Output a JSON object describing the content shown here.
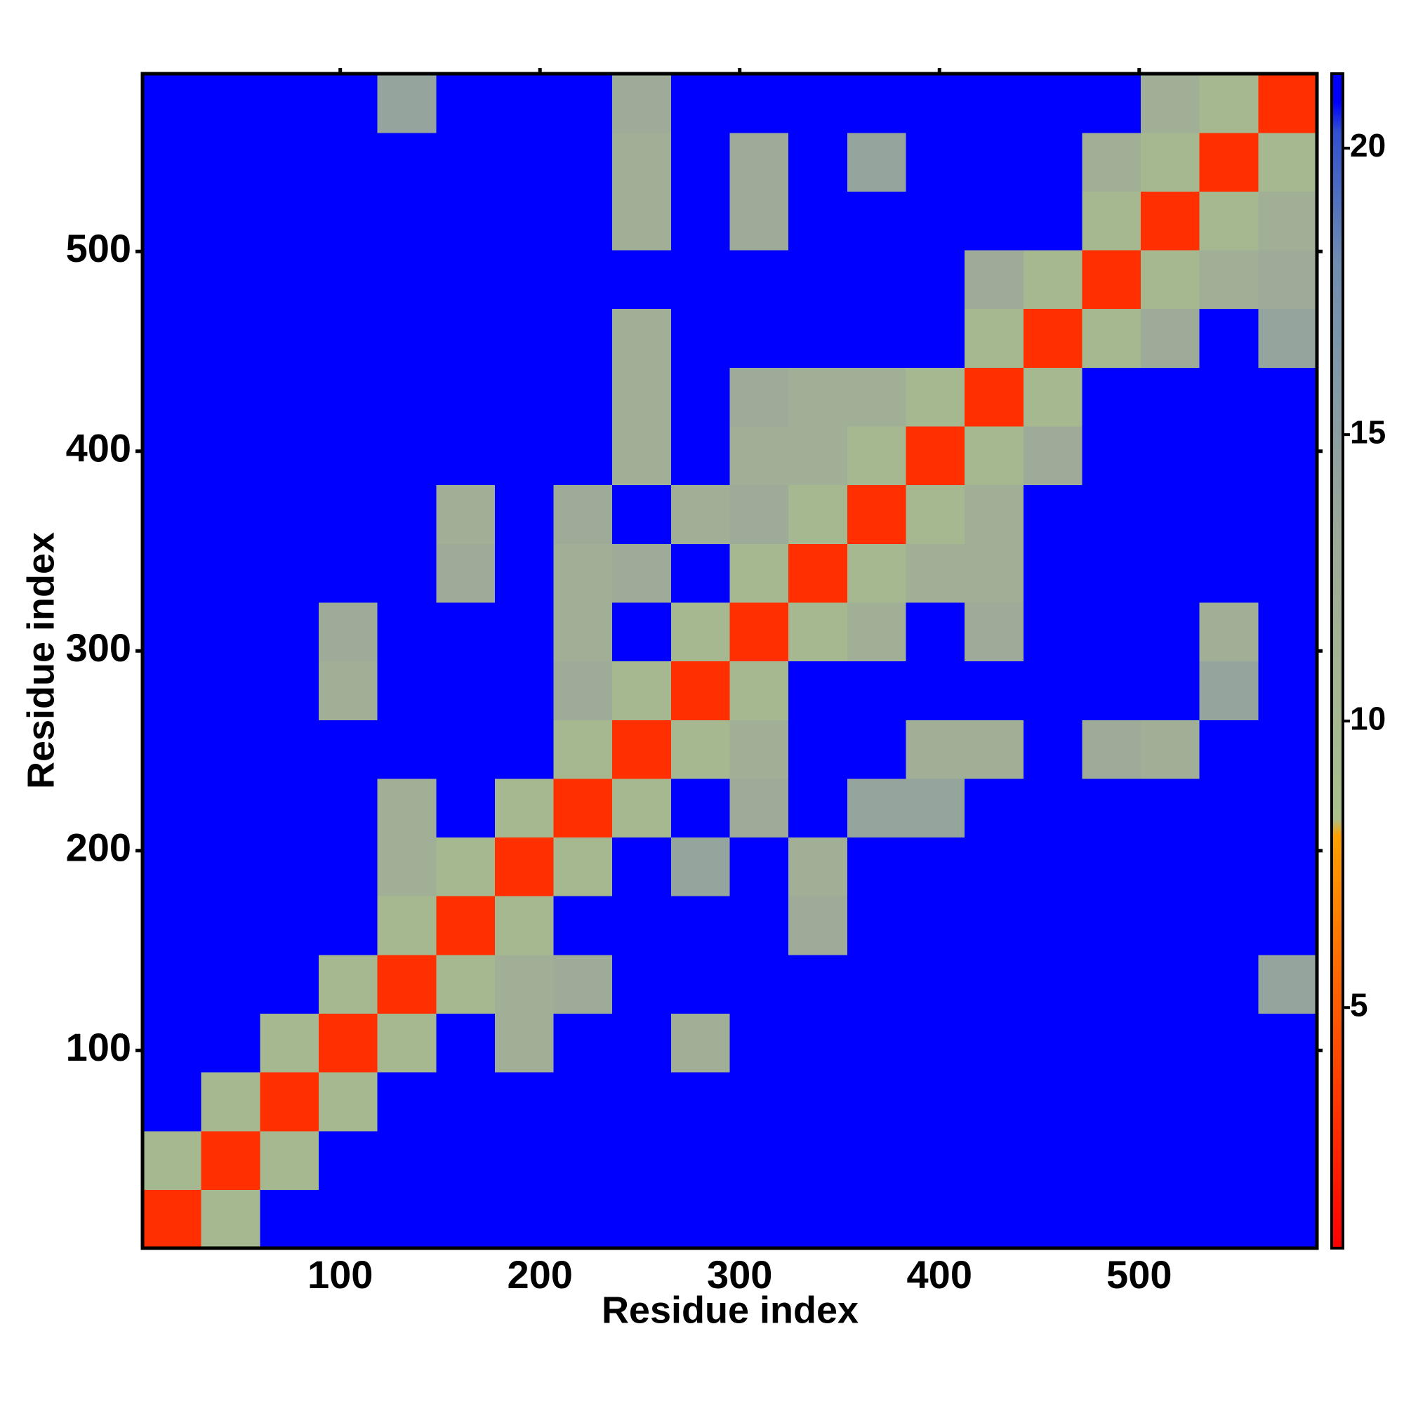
{
  "chart_data": {
    "type": "heatmap",
    "x_label": "Residue index",
    "y_label": "Residue index",
    "xlim": [
      1,
      589
    ],
    "ylim": [
      1,
      589
    ],
    "xticks": [
      100,
      200,
      300,
      400,
      500
    ],
    "yticks": [
      100,
      200,
      300,
      400,
      500
    ],
    "clim": [
      0.8,
      21.3
    ],
    "cticks": [
      5,
      10,
      15,
      20
    ],
    "colorscale": [
      [
        0.8,
        "#ff0000"
      ],
      [
        5,
        "#ff5a00"
      ],
      [
        8,
        "#ffa000"
      ],
      [
        8.3,
        "#a9c08c"
      ],
      [
        13,
        "#9eab98"
      ],
      [
        18,
        "#6f8db0"
      ],
      [
        20.3,
        "#3050d0"
      ],
      [
        20.8,
        "#0000ff"
      ]
    ],
    "values": [
      [
        3,
        10,
        21,
        21,
        21,
        21,
        21,
        21,
        21,
        21,
        21,
        21,
        21,
        21,
        21,
        21,
        21,
        21,
        21,
        21
      ],
      [
        10,
        3,
        10,
        21,
        21,
        21,
        21,
        21,
        21,
        21,
        21,
        21,
        21,
        21,
        21,
        21,
        21,
        21,
        21,
        21
      ],
      [
        21,
        10,
        3,
        10,
        21,
        21,
        21,
        21,
        21,
        21,
        21,
        21,
        21,
        21,
        21,
        21,
        21,
        21,
        21,
        21
      ],
      [
        21,
        21,
        10,
        3,
        10,
        21,
        12,
        21,
        21,
        12,
        21,
        21,
        21,
        21,
        21,
        21,
        21,
        21,
        21,
        21
      ],
      [
        21,
        21,
        21,
        10,
        3,
        10,
        12,
        13,
        21,
        21,
        21,
        21,
        21,
        21,
        21,
        21,
        21,
        21,
        21,
        14
      ],
      [
        21,
        21,
        21,
        21,
        10,
        3,
        10,
        21,
        21,
        21,
        21,
        13,
        21,
        21,
        21,
        21,
        21,
        21,
        21,
        21
      ],
      [
        21,
        21,
        21,
        21,
        12,
        10,
        3,
        10,
        21,
        14,
        21,
        12,
        21,
        21,
        21,
        21,
        21,
        21,
        21,
        21
      ],
      [
        21,
        21,
        21,
        21,
        12,
        21,
        10,
        3,
        10,
        21,
        13,
        21,
        14,
        14,
        21,
        21,
        21,
        21,
        21,
        21
      ],
      [
        21,
        21,
        21,
        21,
        21,
        21,
        21,
        10,
        3,
        10,
        12,
        21,
        21,
        12,
        12,
        21,
        13,
        12,
        21,
        21
      ],
      [
        21,
        21,
        21,
        12,
        21,
        21,
        21,
        13,
        10,
        3,
        10,
        21,
        21,
        21,
        21,
        21,
        21,
        21,
        14,
        21
      ],
      [
        21,
        21,
        21,
        13,
        21,
        21,
        21,
        12,
        21,
        10,
        3,
        10,
        12,
        21,
        13,
        21,
        21,
        21,
        12,
        21
      ],
      [
        21,
        21,
        21,
        21,
        21,
        13,
        21,
        12,
        13,
        21,
        10,
        3,
        10,
        12,
        12,
        21,
        21,
        21,
        21,
        21
      ],
      [
        21,
        21,
        21,
        21,
        21,
        12,
        21,
        13,
        21,
        12,
        13,
        10,
        3,
        10,
        12,
        21,
        21,
        21,
        21,
        21
      ],
      [
        21,
        21,
        21,
        21,
        21,
        21,
        21,
        21,
        12,
        21,
        12,
        12,
        10,
        3,
        10,
        13,
        21,
        21,
        21,
        21
      ],
      [
        21,
        21,
        21,
        21,
        21,
        21,
        21,
        21,
        12,
        21,
        13,
        12,
        12,
        10,
        3,
        10,
        21,
        21,
        21,
        21
      ],
      [
        21,
        21,
        21,
        21,
        21,
        21,
        21,
        21,
        12,
        21,
        21,
        21,
        21,
        21,
        10,
        3,
        10,
        13,
        21,
        14
      ],
      [
        21,
        21,
        21,
        21,
        21,
        21,
        21,
        21,
        21,
        21,
        21,
        21,
        21,
        21,
        13,
        10,
        3,
        10,
        12,
        13
      ],
      [
        21,
        21,
        21,
        21,
        21,
        21,
        21,
        21,
        12,
        21,
        13,
        21,
        21,
        21,
        21,
        21,
        10,
        3,
        10,
        12
      ],
      [
        21,
        21,
        21,
        21,
        21,
        21,
        21,
        21,
        12,
        21,
        13,
        21,
        14,
        21,
        21,
        21,
        12,
        10,
        3,
        10
      ],
      [
        21,
        21,
        21,
        21,
        14,
        21,
        21,
        21,
        13,
        21,
        21,
        21,
        21,
        21,
        21,
        21,
        21,
        12,
        10,
        3
      ]
    ]
  }
}
